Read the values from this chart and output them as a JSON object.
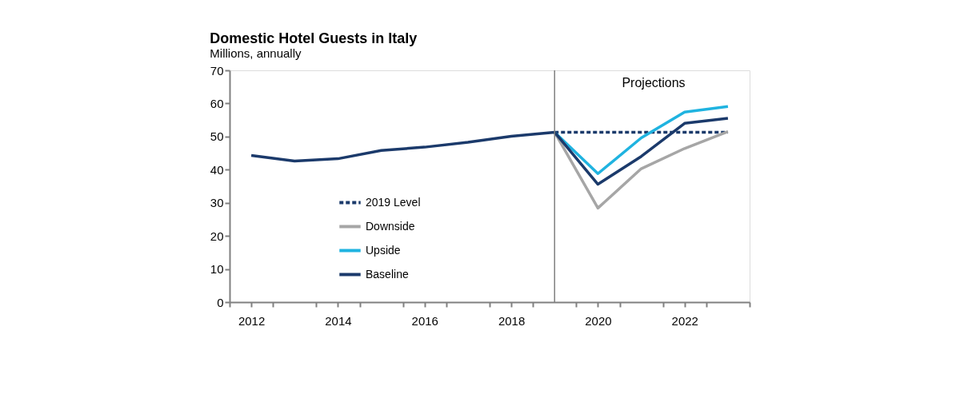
{
  "chart_data": {
    "type": "line",
    "title": "Domestic Hotel Guests in Italy",
    "subtitle": "Millions, annually",
    "series": [
      {
        "name": "2019 Level",
        "color": "#1b3a6b",
        "line_style": "dashed",
        "x": [
          2019,
          2020,
          2021,
          2022,
          2023
        ],
        "values": [
          51.3,
          51.3,
          51.3,
          51.3,
          51.3
        ]
      },
      {
        "name": "Downside",
        "color": "#a6a6a6",
        "x": [
          2019,
          2020,
          2021,
          2022,
          2023
        ],
        "values": [
          51.3,
          28.4,
          40.3,
          46.4,
          51.5
        ]
      },
      {
        "name": "Upside",
        "color": "#1fb3e0",
        "x": [
          2019,
          2020,
          2021,
          2022,
          2023
        ],
        "values": [
          51.3,
          38.8,
          49.6,
          57.4,
          59.1
        ]
      },
      {
        "name": "Baseline",
        "color": "#1b3a6b",
        "x": [
          2012,
          2013,
          2014,
          2015,
          2016,
          2017,
          2018,
          2019,
          2020,
          2021,
          2022,
          2023
        ],
        "values": [
          44.3,
          42.6,
          43.3,
          45.8,
          46.8,
          48.3,
          50.1,
          51.3,
          35.6,
          44.0,
          54.0,
          55.5
        ]
      }
    ],
    "xlim": [
      2011.5,
      2023.5
    ],
    "xticks": [
      {
        "value": 2011.5,
        "label": null
      },
      {
        "value": 2012,
        "label": "2012"
      },
      {
        "value": 2012.5,
        "label": null
      },
      {
        "value": 2013.5,
        "label": null
      },
      {
        "value": 2014,
        "label": "2014"
      },
      {
        "value": 2014.5,
        "label": null
      },
      {
        "value": 2015.5,
        "label": null
      },
      {
        "value": 2016,
        "label": "2016"
      },
      {
        "value": 2016.5,
        "label": null
      },
      {
        "value": 2017.5,
        "label": null
      },
      {
        "value": 2018,
        "label": "2018"
      },
      {
        "value": 2018.5,
        "label": null
      },
      {
        "value": 2019.5,
        "label": null
      },
      {
        "value": 2020,
        "label": "2020"
      },
      {
        "value": 2020.5,
        "label": null
      },
      {
        "value": 2021.5,
        "label": null
      },
      {
        "value": 2022,
        "label": "2022"
      },
      {
        "value": 2022.5,
        "label": null
      },
      {
        "value": 2023.5,
        "label": null
      }
    ],
    "ylim": [
      0,
      70
    ],
    "yticks": [
      0,
      10,
      20,
      30,
      40,
      50,
      60,
      70
    ],
    "ref_lines": [
      {
        "axis": "x",
        "value": 2019,
        "label": null,
        "color": "#808080"
      }
    ],
    "annotations": [
      "Projections"
    ],
    "grid": false,
    "legend": "bottom left",
    "line_style": "solid",
    "marker": "none"
  }
}
